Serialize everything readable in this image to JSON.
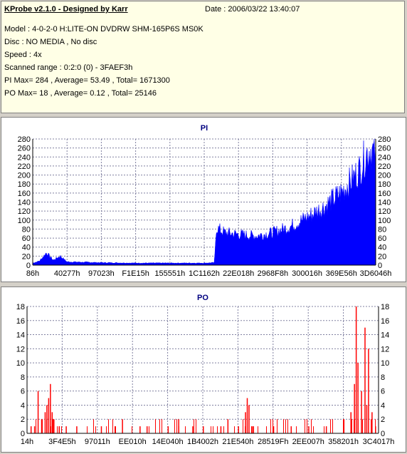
{
  "header": {
    "title": "KProbe v2.1.0 - Designed by Karr",
    "date": "Date : 2006/03/22 13:40:07",
    "model": "Model : 4-0-2-0 H:LITE-ON DVDRW SHM-165P6S MS0K",
    "disc": "Disc : NO MEDIA , No disc",
    "speed": "Speed : 4x",
    "scanned_range": "Scanned range : 0:2:0 (0) - 3FAEF3h",
    "pi_summary": "PI Max= 284 , Average= 53.49 , Total= 1671300",
    "po_summary": "PO Max= 18 , Average= 0.12 , Total= 25146"
  },
  "colors": {
    "pi_fill": "#0000ff",
    "po_fill": "#ff0000",
    "title_text": "#000080",
    "grid": "#8080a0",
    "background": "#d4d0c8",
    "info_background": "#ffffe6"
  },
  "chart_data": [
    {
      "type": "bar",
      "title": "PI",
      "ylim": [
        0,
        280
      ],
      "yticks": [
        0,
        20,
        40,
        60,
        80,
        100,
        120,
        140,
        160,
        180,
        200,
        220,
        240,
        260,
        280
      ],
      "xtick_labels": [
        "86h",
        "40277h",
        "97023h",
        "F1E15h",
        "155551h",
        "1C1162h",
        "22E018h",
        "2968F8h",
        "300016h",
        "369E56h",
        "3D6046h"
      ],
      "grid": true,
      "profile": [
        [
          0,
          5
        ],
        [
          0.02,
          10
        ],
        [
          0.04,
          30
        ],
        [
          0.06,
          12
        ],
        [
          0.08,
          22
        ],
        [
          0.1,
          8
        ],
        [
          0.2,
          6
        ],
        [
          0.3,
          5
        ],
        [
          0.4,
          5
        ],
        [
          0.5,
          5
        ],
        [
          0.53,
          6
        ],
        [
          0.535,
          90
        ],
        [
          0.56,
          78
        ],
        [
          0.6,
          74
        ],
        [
          0.65,
          70
        ],
        [
          0.7,
          78
        ],
        [
          0.75,
          92
        ],
        [
          0.8,
          115
        ],
        [
          0.85,
          140
        ],
        [
          0.9,
          175
        ],
        [
          0.95,
          225
        ],
        [
          0.975,
          270
        ],
        [
          0.985,
          280
        ],
        [
          1.0,
          260
        ]
      ]
    },
    {
      "type": "bar",
      "title": "PO",
      "ylim": [
        0,
        18
      ],
      "yticks": [
        0,
        2,
        4,
        6,
        8,
        10,
        12,
        14,
        16,
        18
      ],
      "xtick_labels": [
        "14h",
        "3F4E5h",
        "97011h",
        "EE010h",
        "14E040h",
        "1B4002h",
        "21E540h",
        "28519Fh",
        "2EE007h",
        "358201h",
        "3C4017h"
      ],
      "grid": true,
      "spikes": [
        [
          0.01,
          1
        ],
        [
          0.02,
          1
        ],
        [
          0.03,
          6
        ],
        [
          0.04,
          2
        ],
        [
          0.05,
          3
        ],
        [
          0.055,
          4
        ],
        [
          0.06,
          5
        ],
        [
          0.065,
          7
        ],
        [
          0.07,
          3
        ],
        [
          0.075,
          2
        ],
        [
          0.09,
          1
        ],
        [
          0.11,
          1
        ],
        [
          0.14,
          1
        ],
        [
          0.21,
          1
        ],
        [
          0.25,
          1
        ],
        [
          0.27,
          2
        ],
        [
          0.32,
          1
        ],
        [
          0.34,
          1
        ],
        [
          0.4,
          1
        ],
        [
          0.43,
          2
        ],
        [
          0.47,
          1
        ],
        [
          0.5,
          1
        ],
        [
          0.55,
          1
        ],
        [
          0.57,
          2
        ],
        [
          0.6,
          1
        ],
        [
          0.62,
          3
        ],
        [
          0.625,
          5
        ],
        [
          0.63,
          4
        ],
        [
          0.64,
          1
        ],
        [
          0.7,
          1
        ],
        [
          0.75,
          1
        ],
        [
          0.8,
          1
        ],
        [
          0.85,
          1
        ],
        [
          0.9,
          2
        ],
        [
          0.92,
          3
        ],
        [
          0.93,
          7
        ],
        [
          0.935,
          18
        ],
        [
          0.94,
          10
        ],
        [
          0.95,
          6
        ],
        [
          0.96,
          15
        ],
        [
          0.965,
          4
        ],
        [
          0.97,
          12
        ],
        [
          0.98,
          3
        ],
        [
          0.99,
          1
        ]
      ]
    }
  ]
}
